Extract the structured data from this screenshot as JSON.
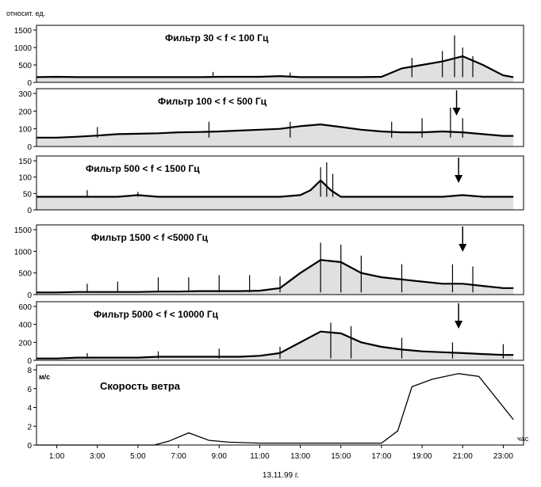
{
  "figure": {
    "ylabel_top": "относит. ед.",
    "date_label": "13.11.99 г."
  },
  "chart_data": [
    {
      "type": "line",
      "title": "Фильтр 30 < f < 100 Гц",
      "yticks": [
        0,
        500,
        1000,
        1500
      ],
      "ylim": [
        0,
        1500
      ],
      "arrow_at_hour": null,
      "series": [
        {
          "x": [
            0,
            1,
            2,
            3,
            4,
            5,
            6,
            7,
            7.5,
            8,
            9,
            10,
            11,
            12,
            13,
            14,
            15,
            16,
            17,
            18,
            19,
            20,
            21,
            22,
            23,
            23.5
          ],
          "y": [
            150,
            160,
            150,
            150,
            150,
            150,
            150,
            150,
            150,
            150,
            160,
            160,
            160,
            180,
            150,
            150,
            150,
            150,
            160,
            400,
            500,
            600,
            750,
            500,
            200,
            150
          ],
          "spikes": [
            [
              8.7,
              300
            ],
            [
              12.5,
              280
            ],
            [
              18.5,
              700
            ],
            [
              20.0,
              900
            ],
            [
              20.6,
              1350
            ],
            [
              21.0,
              1000
            ],
            [
              21.5,
              750
            ]
          ]
        }
      ]
    },
    {
      "type": "line",
      "title": "Фильтр 100 < f < 500 Гц",
      "yticks": [
        0,
        100,
        200,
        300
      ],
      "ylim": [
        0,
        300
      ],
      "arrow_at_hour": 20.7,
      "series": [
        {
          "x": [
            0,
            1,
            2,
            3,
            4,
            5,
            6,
            7,
            8,
            9,
            10,
            11,
            12,
            13,
            14,
            15,
            16,
            17,
            18,
            19,
            20,
            21,
            22,
            23,
            23.5
          ],
          "y": [
            50,
            50,
            55,
            62,
            70,
            72,
            75,
            80,
            82,
            85,
            90,
            95,
            100,
            115,
            125,
            110,
            95,
            85,
            80,
            80,
            85,
            80,
            70,
            60,
            60
          ],
          "spikes": [
            [
              3,
              110
            ],
            [
              8.5,
              140
            ],
            [
              12.5,
              140
            ],
            [
              17.5,
              140
            ],
            [
              19,
              160
            ],
            [
              20.4,
              220
            ],
            [
              21,
              160
            ]
          ]
        }
      ]
    },
    {
      "type": "line",
      "title": "Фильтр 500 < f < 1500 Гц",
      "yticks": [
        0,
        50,
        100,
        150
      ],
      "ylim": [
        0,
        150
      ],
      "arrow_at_hour": 20.8,
      "series": [
        {
          "x": [
            0,
            1,
            2,
            3,
            4,
            5,
            6,
            7,
            8,
            9,
            10,
            11,
            12,
            13,
            13.5,
            14,
            14.5,
            15,
            16,
            17,
            18,
            19,
            20,
            21,
            22,
            23,
            23.5
          ],
          "y": [
            40,
            40,
            40,
            40,
            40,
            45,
            40,
            40,
            40,
            40,
            40,
            40,
            40,
            45,
            60,
            90,
            60,
            40,
            40,
            40,
            40,
            40,
            40,
            45,
            40,
            40,
            40
          ],
          "spikes": [
            [
              2.5,
              60
            ],
            [
              5,
              55
            ],
            [
              14.0,
              130
            ],
            [
              14.3,
              145
            ],
            [
              14.6,
              110
            ]
          ]
        }
      ]
    },
    {
      "type": "line",
      "title": "Фильтр 1500 < f <5000 Гц",
      "yticks": [
        0,
        500,
        1000,
        1500
      ],
      "ylim": [
        0,
        1500
      ],
      "arrow_at_hour": 21.0,
      "series": [
        {
          "x": [
            0,
            1,
            2,
            3,
            4,
            5,
            6,
            7,
            8,
            9,
            10,
            11,
            12,
            13,
            14,
            15,
            16,
            17,
            18,
            19,
            20,
            21,
            22,
            23,
            23.5
          ],
          "y": [
            50,
            50,
            60,
            60,
            60,
            60,
            70,
            70,
            80,
            80,
            80,
            90,
            150,
            500,
            800,
            750,
            500,
            400,
            350,
            300,
            250,
            250,
            200,
            150,
            150
          ],
          "spikes": [
            [
              2.5,
              250
            ],
            [
              4,
              300
            ],
            [
              6,
              400
            ],
            [
              7.5,
              400
            ],
            [
              9,
              450
            ],
            [
              10.5,
              450
            ],
            [
              12,
              420
            ],
            [
              14,
              1200
            ],
            [
              15,
              1150
            ],
            [
              16,
              900
            ],
            [
              18,
              700
            ],
            [
              20.5,
              700
            ],
            [
              21.5,
              650
            ]
          ]
        }
      ]
    },
    {
      "type": "line",
      "title": "Фильтр 5000 < f < 10000 Гц",
      "yticks": [
        0,
        200,
        400,
        600
      ],
      "ylim": [
        0,
        600
      ],
      "arrow_at_hour": 20.8,
      "series": [
        {
          "x": [
            0,
            1,
            2,
            3,
            4,
            5,
            6,
            7,
            8,
            9,
            10,
            11,
            12,
            13,
            14,
            15,
            16,
            17,
            18,
            19,
            20,
            21,
            22,
            23,
            23.5
          ],
          "y": [
            20,
            20,
            30,
            30,
            30,
            30,
            40,
            40,
            40,
            40,
            40,
            50,
            80,
            200,
            320,
            300,
            200,
            150,
            120,
            100,
            90,
            80,
            70,
            60,
            60
          ],
          "spikes": [
            [
              2.5,
              80
            ],
            [
              6,
              100
            ],
            [
              9,
              130
            ],
            [
              12,
              150
            ],
            [
              14.5,
              420
            ],
            [
              15.5,
              380
            ],
            [
              18,
              250
            ],
            [
              20.5,
              200
            ],
            [
              23,
              180
            ]
          ]
        }
      ]
    },
    {
      "type": "line",
      "title": "Скорость ветра",
      "ylabel": "м/с",
      "xlabel": "час",
      "yticks": [
        0,
        2,
        4,
        6,
        8
      ],
      "ylim": [
        0,
        8
      ],
      "xticks": [
        "1:00",
        "3:00",
        "5:00",
        "7:00",
        "9:00",
        "11:00",
        "13:00",
        "15:00",
        "17:00",
        "19:00",
        "21:00",
        "23:00"
      ],
      "series": [
        {
          "x": [
            0,
            5.8,
            6.5,
            7.5,
            8.5,
            9.5,
            11,
            13,
            15,
            17,
            17.8,
            18.5,
            19.5,
            20.8,
            21.8,
            23.5
          ],
          "y": [
            0,
            0,
            0.4,
            1.3,
            0.5,
            0.3,
            0.2,
            0.2,
            0.2,
            0.2,
            1.5,
            6.2,
            7.0,
            7.6,
            7.3,
            2.7
          ]
        }
      ]
    }
  ]
}
